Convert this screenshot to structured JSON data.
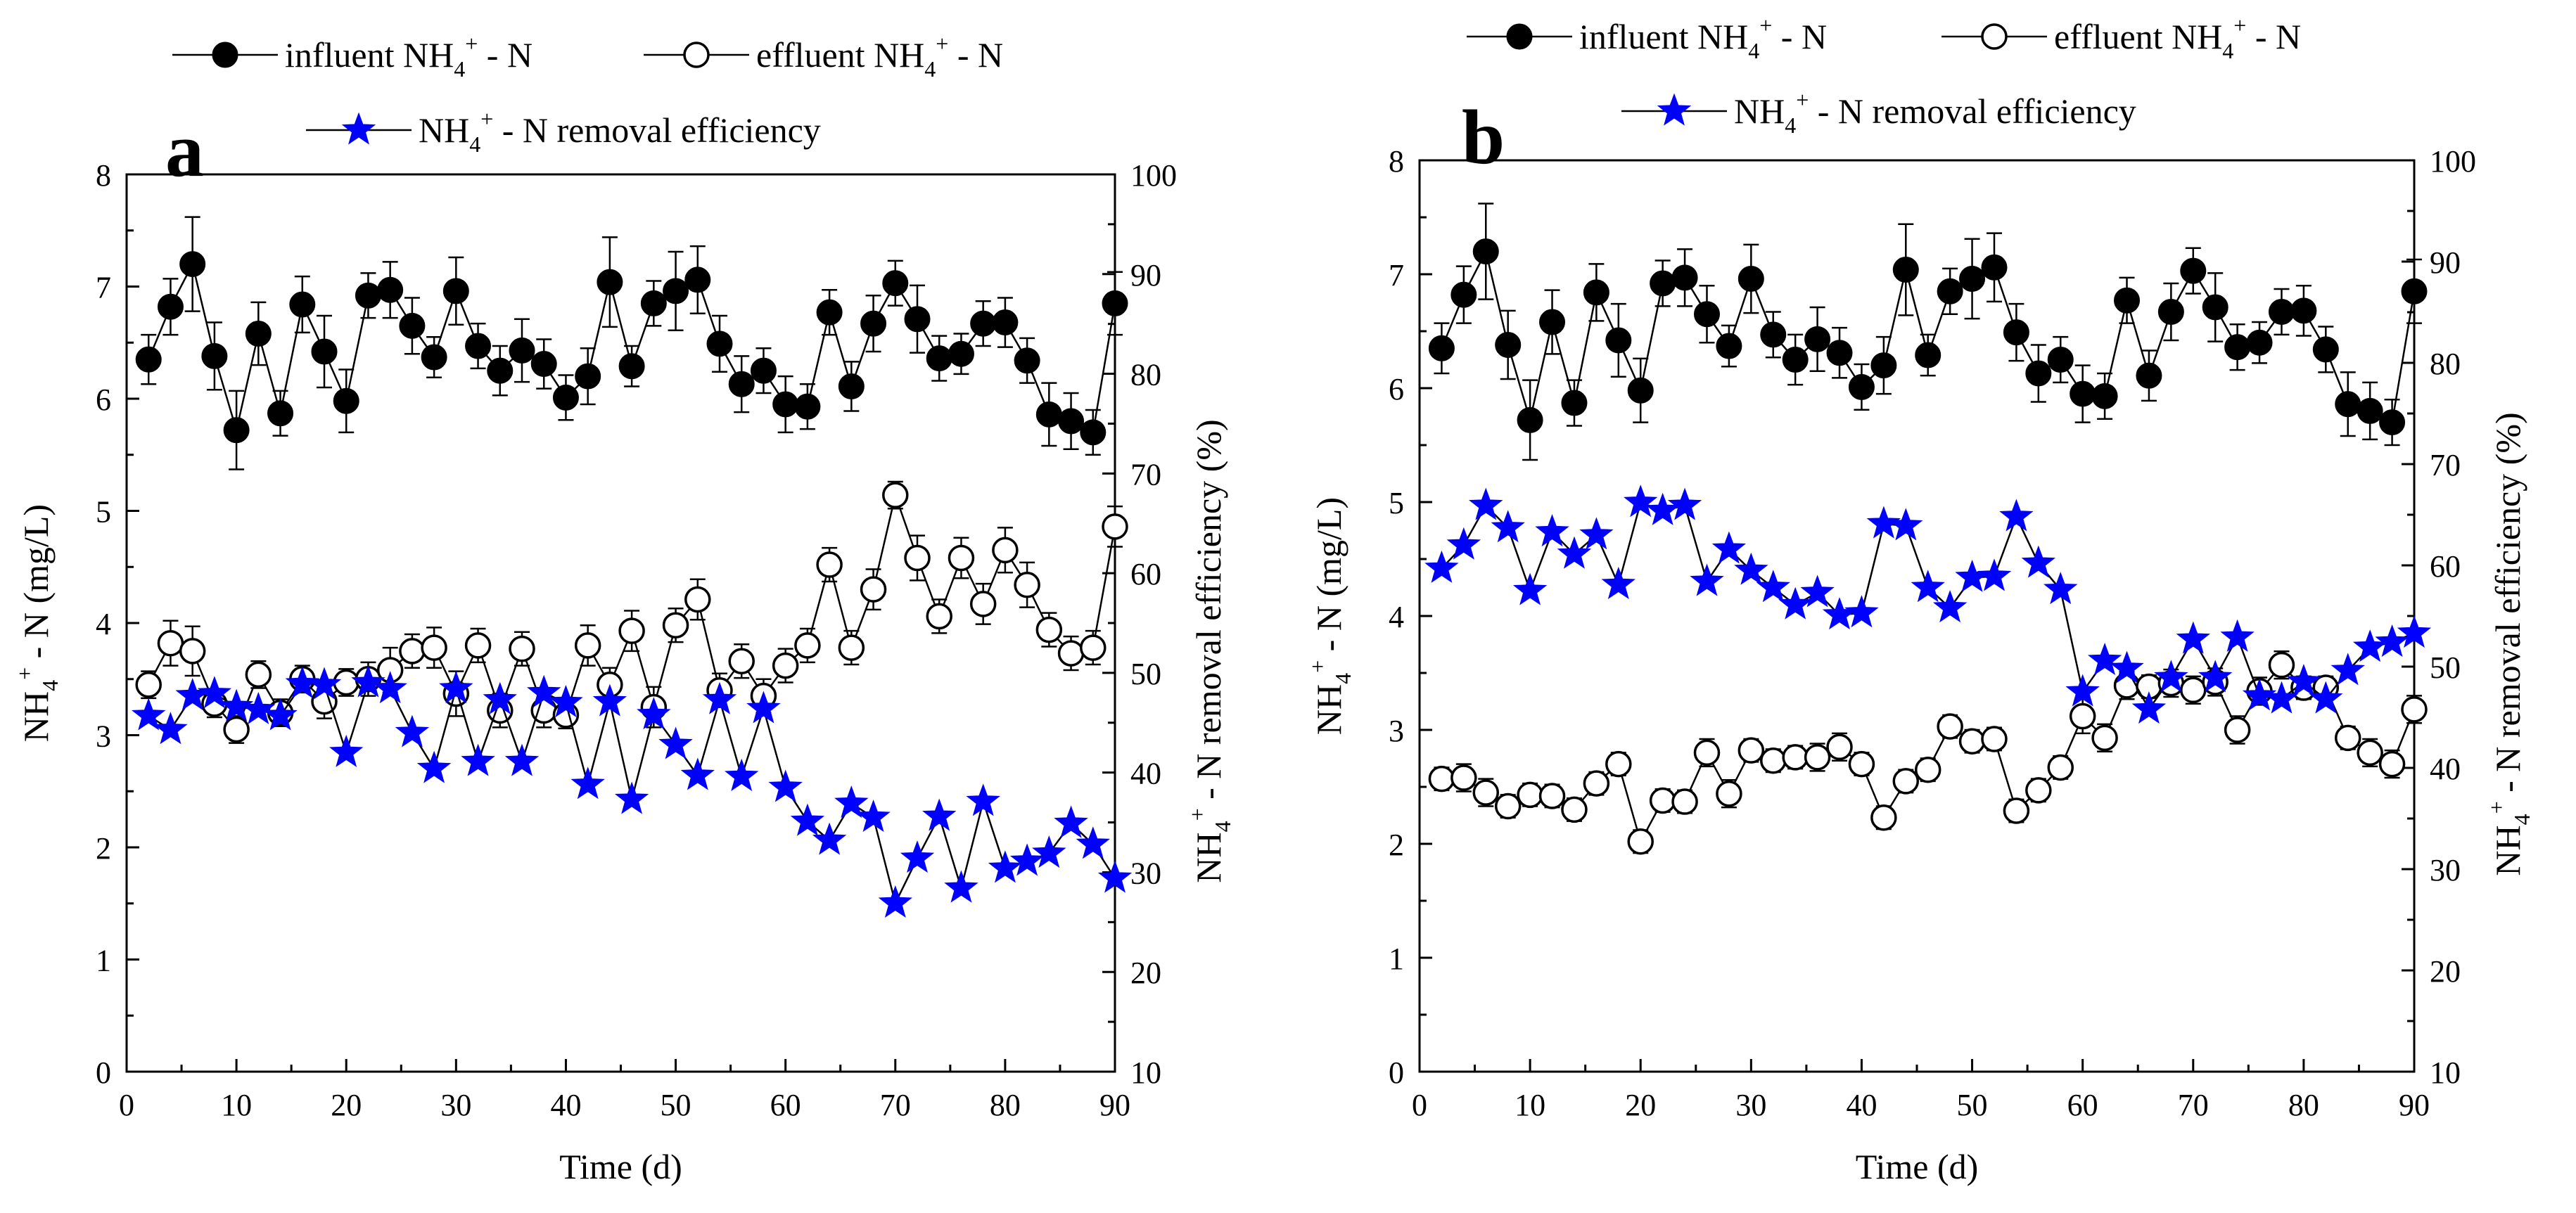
{
  "colors": {
    "influent": "#000000",
    "effluent": "#ffffff",
    "removal": "#0000ff",
    "line": "#000000"
  },
  "chart_data": [
    {
      "type": "line",
      "panel_letter": "a",
      "xlabel": "Time (d)",
      "ylabel_left": "NH4+ - N (mg/L)",
      "ylabel_right": "NH4+ - N removal efficiency (%)",
      "xlim": [
        0,
        90
      ],
      "ylim_left": [
        0,
        8
      ],
      "ylim_right": [
        10,
        100
      ],
      "x_ticks": [
        "0",
        "10",
        "20",
        "30",
        "40",
        "50",
        "60",
        "70",
        "80",
        "90"
      ],
      "y_ticks_left": [
        "0",
        "1",
        "2",
        "3",
        "4",
        "5",
        "6",
        "7",
        "8"
      ],
      "y_ticks_right": [
        "10",
        "20",
        "30",
        "40",
        "50",
        "60",
        "70",
        "80",
        "90",
        "100"
      ],
      "legend": {
        "influent": "influent NH4+ - N",
        "effluent": "effluent NH4+ - N",
        "removal": "NH4+ - N removal efficiency"
      },
      "x": [
        2,
        4,
        6,
        8,
        10,
        12,
        14,
        16,
        18,
        20,
        22,
        24,
        26,
        28,
        30,
        32,
        34,
        36,
        38,
        40,
        42,
        44,
        46,
        48,
        50,
        52,
        54,
        56,
        58,
        60,
        62,
        64,
        66,
        68,
        70,
        72,
        74,
        76,
        78,
        80,
        82,
        84,
        86,
        88,
        90
      ],
      "series": [
        {
          "name": "influent NH4+ - N",
          "axis": "left",
          "marker": "filled-circle",
          "values": [
            6.35,
            6.82,
            7.2,
            6.38,
            5.72,
            6.58,
            5.87,
            6.84,
            6.42,
            5.98,
            6.92,
            6.97,
            6.65,
            6.37,
            6.96,
            6.47,
            6.25,
            6.43,
            6.31,
            6.01,
            6.2,
            7.04,
            6.29,
            6.85,
            6.96,
            7.06,
            6.49,
            6.13,
            6.25,
            5.95,
            5.93,
            6.77,
            6.11,
            6.67,
            7.03,
            6.71,
            6.36,
            6.4,
            6.67,
            6.68,
            6.34,
            5.86,
            5.8,
            5.7,
            6.85
          ],
          "errors": [
            0.22,
            0.25,
            0.42,
            0.3,
            0.35,
            0.28,
            0.2,
            0.25,
            0.32,
            0.28,
            0.2,
            0.25,
            0.25,
            0.18,
            0.3,
            0.2,
            0.22,
            0.28,
            0.22,
            0.2,
            0.25,
            0.4,
            0.18,
            0.2,
            0.35,
            0.3,
            0.25,
            0.25,
            0.2,
            0.25,
            0.2,
            0.2,
            0.22,
            0.25,
            0.2,
            0.3,
            0.2,
            0.18,
            0.2,
            0.22,
            0.2,
            0.28,
            0.25,
            0.2,
            0.28
          ]
        },
        {
          "name": "effluent NH4+ - N",
          "axis": "left",
          "marker": "open-circle",
          "values": [
            3.45,
            3.82,
            3.75,
            3.28,
            3.05,
            3.54,
            3.2,
            3.5,
            3.3,
            3.47,
            3.5,
            3.58,
            3.75,
            3.78,
            3.37,
            3.8,
            3.22,
            3.77,
            3.22,
            3.18,
            3.8,
            3.45,
            3.93,
            3.25,
            3.98,
            4.21,
            3.4,
            3.66,
            3.35,
            3.62,
            3.8,
            4.52,
            3.78,
            4.3,
            5.14,
            4.58,
            4.06,
            4.58,
            4.17,
            4.65,
            4.34,
            3.94,
            3.73,
            3.78,
            4.86
          ],
          "errors": [
            0.12,
            0.2,
            0.22,
            0.12,
            0.12,
            0.12,
            0.12,
            0.12,
            0.15,
            0.12,
            0.15,
            0.2,
            0.15,
            0.18,
            0.2,
            0.15,
            0.15,
            0.15,
            0.15,
            0.12,
            0.18,
            0.15,
            0.18,
            0.18,
            0.15,
            0.18,
            0.15,
            0.15,
            0.15,
            0.15,
            0.15,
            0.15,
            0.15,
            0.18,
            0.12,
            0.2,
            0.15,
            0.18,
            0.18,
            0.2,
            0.2,
            0.15,
            0.15,
            0.15,
            0.18
          ]
        },
        {
          "name": "NH4+ - N removal efficiency",
          "axis": "right",
          "marker": "star",
          "values": [
            45.7,
            44.3,
            47.7,
            47.9,
            46.6,
            46.3,
            45.7,
            48.9,
            48.8,
            42,
            49,
            48.4,
            44,
            40.4,
            48.4,
            41.1,
            47.3,
            41.1,
            48,
            47,
            38.8,
            47.1,
            37.3,
            45.8,
            42.8,
            39.7,
            47.3,
            39.6,
            46.4,
            38.5,
            35.1,
            33.2,
            36.9,
            35.5,
            26.9,
            31.4,
            35.6,
            28.4,
            37.1,
            30.4,
            31.1,
            31.9,
            34.9,
            32.8,
            29.4
          ]
        }
      ]
    },
    {
      "type": "line",
      "panel_letter": "b",
      "xlabel": "Time (d)",
      "ylabel_left": "NH4+ - N (mg/L)",
      "ylabel_right": "NH4+ - N removal efficiency (%)",
      "xlim": [
        0,
        90
      ],
      "ylim_left": [
        0,
        8
      ],
      "ylim_right": [
        10,
        100
      ],
      "x_ticks": [
        "0",
        "10",
        "20",
        "30",
        "40",
        "50",
        "60",
        "70",
        "80",
        "90"
      ],
      "y_ticks_left": [
        "0",
        "1",
        "2",
        "3",
        "4",
        "5",
        "6",
        "7",
        "8"
      ],
      "y_ticks_right": [
        "10",
        "20",
        "30",
        "40",
        "50",
        "60",
        "70",
        "80",
        "90",
        "100"
      ],
      "legend": {
        "influent": "influent NH4+ - N",
        "effluent": "effluent NH4+ - N",
        "removal": "NH4+ - N removal efficiency"
      },
      "x": [
        2,
        4,
        6,
        8,
        10,
        12,
        14,
        16,
        18,
        20,
        22,
        24,
        26,
        28,
        30,
        32,
        34,
        36,
        38,
        40,
        42,
        44,
        46,
        48,
        50,
        52,
        54,
        56,
        58,
        60,
        62,
        64,
        66,
        68,
        70,
        72,
        74,
        76,
        78,
        80,
        82,
        84,
        86,
        88,
        90
      ],
      "series": [
        {
          "name": "influent NH4+ - N",
          "axis": "left",
          "marker": "filled-circle",
          "values": [
            6.35,
            6.82,
            7.2,
            6.38,
            5.72,
            6.58,
            5.87,
            6.84,
            6.42,
            5.98,
            6.92,
            6.97,
            6.65,
            6.37,
            6.96,
            6.47,
            6.25,
            6.43,
            6.31,
            6.01,
            6.2,
            7.04,
            6.29,
            6.85,
            6.96,
            7.06,
            6.49,
            6.13,
            6.25,
            5.95,
            5.93,
            6.77,
            6.11,
            6.67,
            7.03,
            6.71,
            6.36,
            6.4,
            6.67,
            6.68,
            6.34,
            5.86,
            5.8,
            5.7,
            6.85
          ],
          "errors": [
            0.22,
            0.25,
            0.42,
            0.3,
            0.35,
            0.28,
            0.2,
            0.25,
            0.32,
            0.28,
            0.2,
            0.25,
            0.25,
            0.18,
            0.3,
            0.2,
            0.22,
            0.28,
            0.22,
            0.2,
            0.25,
            0.4,
            0.18,
            0.2,
            0.35,
            0.3,
            0.25,
            0.25,
            0.2,
            0.25,
            0.2,
            0.2,
            0.22,
            0.25,
            0.2,
            0.3,
            0.2,
            0.18,
            0.2,
            0.22,
            0.2,
            0.28,
            0.25,
            0.2,
            0.28
          ]
        },
        {
          "name": "effluent NH4+ - N",
          "axis": "left",
          "marker": "open-circle",
          "values": [
            2.57,
            2.58,
            2.45,
            2.33,
            2.43,
            2.42,
            2.3,
            2.53,
            2.7,
            2.02,
            2.38,
            2.37,
            2.8,
            2.44,
            2.82,
            2.73,
            2.76,
            2.76,
            2.85,
            2.7,
            2.23,
            2.55,
            2.65,
            3.03,
            2.9,
            2.92,
            2.29,
            2.47,
            2.67,
            3.12,
            2.93,
            3.39,
            3.38,
            3.41,
            3.35,
            3.42,
            3.0,
            3.34,
            3.57,
            3.37,
            3.37,
            2.93,
            2.8,
            2.7,
            3.18
          ],
          "errors": [
            0.1,
            0.12,
            0.12,
            0.1,
            0.1,
            0.1,
            0.1,
            0.1,
            0.1,
            0.1,
            0.1,
            0.1,
            0.12,
            0.12,
            0.1,
            0.1,
            0.1,
            0.12,
            0.12,
            0.1,
            0.1,
            0.1,
            0.1,
            0.1,
            0.1,
            0.1,
            0.1,
            0.1,
            0.1,
            0.15,
            0.12,
            0.12,
            0.1,
            0.12,
            0.12,
            0.12,
            0.12,
            0.12,
            0.12,
            0.1,
            0.1,
            0.1,
            0.12,
            0.12,
            0.12
          ]
        },
        {
          "name": "NH4+ - N removal efficiency",
          "axis": "right",
          "marker": "star",
          "values": [
            59.7,
            62,
            65.9,
            63.7,
            57.5,
            63.3,
            61.1,
            63,
            58.1,
            66.2,
            65.4,
            65.9,
            58.4,
            61.6,
            59.5,
            57.8,
            56.1,
            57.3,
            55.1,
            55.3,
            64.1,
            63.9,
            57.8,
            55.8,
            58.8,
            58.9,
            64.8,
            60.2,
            57.6,
            47.5,
            50.6,
            49.8,
            45.8,
            48.9,
            52.7,
            48.9,
            52.9,
            47.1,
            46.8,
            48.5,
            46.8,
            49.6,
            51.9,
            52.4,
            53.3
          ]
        }
      ]
    }
  ]
}
